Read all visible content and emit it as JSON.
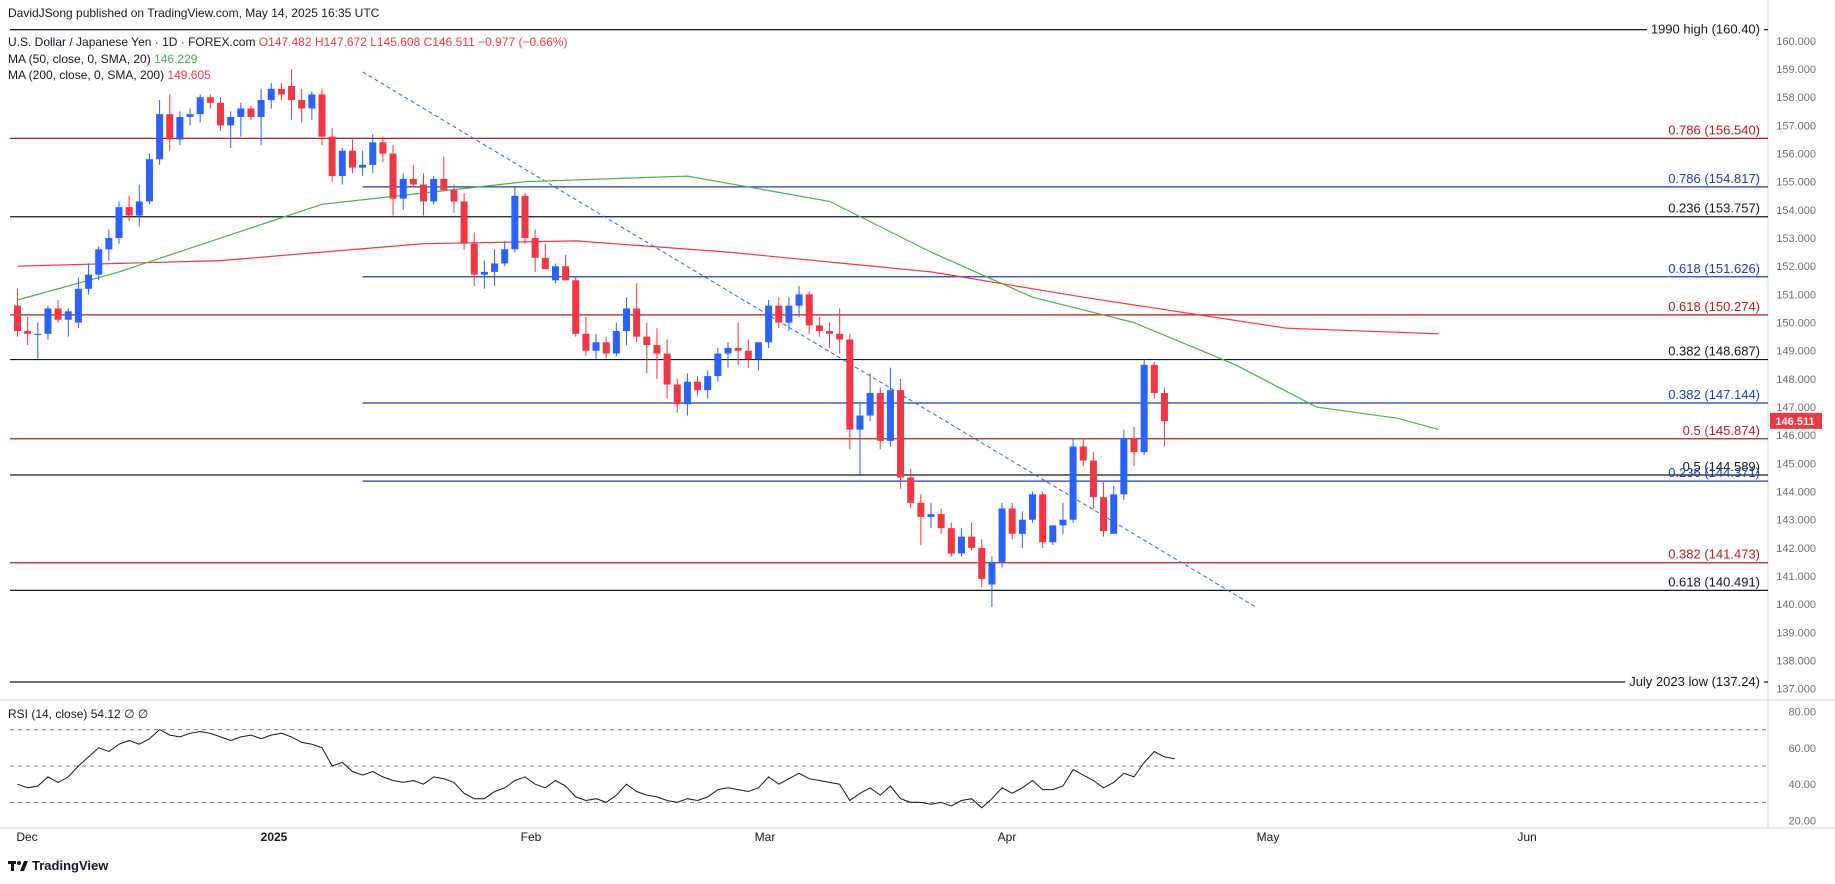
{
  "header": {
    "published": "DavidJSong published on TradingView.com, May 14, 2025 16:35 UTC",
    "symbol": "U.S. Dollar / Japanese Yen · 1D · FOREX.com",
    "ohlc": "O147.482 H147.672 L145.608 C146.511 −0.977 (−0.66%)",
    "ma50_label": "MA (50, close, 0, SMA, 20)",
    "ma50_value": "146.229",
    "ma200_label": "MA (200, close, 0, SMA, 200)",
    "ma200_value": "149.605",
    "rsi_label": "RSI (14, close)",
    "rsi_value": "54.12 ∅ ∅"
  },
  "footer": {
    "brand": "TradingView"
  },
  "colors": {
    "up": "#2962ff",
    "down": "#f23645",
    "ma50": "#4caf50",
    "ma200": "#f23645",
    "price_tag": "#f23645"
  },
  "chart_data": {
    "type": "candlestick",
    "title": "U.S. Dollar / Japanese Yen · 1D · FOREX.com",
    "x_ticks": [
      "Dec",
      "2025",
      "Feb",
      "Mar",
      "Apr",
      "May",
      "Jun"
    ],
    "y_ticks": [
      "137.000",
      "138.000",
      "139.000",
      "140.000",
      "141.000",
      "142.000",
      "143.000",
      "144.000",
      "145.000",
      "146.000",
      "147.000",
      "148.000",
      "149.000",
      "150.000",
      "151.000",
      "152.000",
      "153.000",
      "154.000",
      "155.000",
      "156.000",
      "157.000",
      "158.000",
      "159.000",
      "160.000"
    ],
    "ylim": [
      136.6,
      160.6
    ],
    "last_price": "146.511",
    "candles": [
      [
        150.6,
        151.2,
        149.5,
        149.7
      ],
      [
        149.7,
        150.2,
        149.2,
        149.6
      ],
      [
        149.6,
        150.0,
        148.7,
        149.6
      ],
      [
        149.6,
        150.6,
        149.4,
        150.5
      ],
      [
        150.5,
        150.8,
        150.0,
        150.1
      ],
      [
        150.1,
        150.5,
        149.5,
        150.4
      ],
      [
        150.0,
        151.6,
        149.8,
        151.2
      ],
      [
        151.2,
        152.1,
        151.0,
        151.7
      ],
      [
        151.7,
        152.7,
        151.5,
        152.6
      ],
      [
        152.6,
        153.3,
        152.2,
        153.0
      ],
      [
        153.0,
        154.3,
        152.8,
        154.1
      ],
      [
        154.1,
        154.5,
        153.6,
        153.8
      ],
      [
        153.8,
        154.9,
        153.4,
        154.3
      ],
      [
        154.3,
        156.0,
        154.2,
        155.8
      ],
      [
        155.8,
        157.9,
        155.6,
        157.4
      ],
      [
        157.4,
        158.1,
        156.1,
        156.5
      ],
      [
        156.5,
        157.5,
        156.3,
        157.3
      ],
      [
        157.3,
        157.6,
        157.0,
        157.4
      ],
      [
        157.4,
        158.1,
        157.1,
        158.0
      ],
      [
        158.0,
        158.1,
        157.6,
        157.8
      ],
      [
        157.8,
        158.0,
        156.8,
        157.0
      ],
      [
        157.0,
        157.5,
        156.2,
        157.3
      ],
      [
        157.3,
        157.8,
        156.6,
        157.6
      ],
      [
        157.6,
        157.7,
        157.2,
        157.3
      ],
      [
        157.3,
        158.3,
        156.3,
        157.9
      ],
      [
        157.9,
        158.5,
        157.6,
        158.3
      ],
      [
        158.3,
        158.5,
        157.9,
        158.1
      ],
      [
        158.4,
        159.0,
        157.2,
        157.9
      ],
      [
        157.9,
        158.3,
        157.1,
        157.6
      ],
      [
        157.6,
        158.2,
        157.2,
        158.1
      ],
      [
        158.1,
        158.3,
        156.3,
        156.6
      ],
      [
        156.6,
        156.9,
        155.0,
        155.2
      ],
      [
        155.2,
        156.2,
        154.9,
        156.1
      ],
      [
        156.1,
        156.5,
        155.3,
        155.5
      ],
      [
        155.5,
        156.1,
        155.2,
        155.6
      ],
      [
        155.6,
        156.7,
        155.3,
        156.4
      ],
      [
        156.4,
        156.6,
        155.7,
        156.0
      ],
      [
        156.0,
        156.3,
        153.8,
        154.4
      ],
      [
        154.4,
        155.3,
        154.0,
        155.1
      ],
      [
        155.1,
        155.6,
        154.8,
        154.9
      ],
      [
        154.9,
        155.3,
        153.8,
        154.3
      ],
      [
        154.3,
        155.2,
        154.2,
        155.1
      ],
      [
        155.1,
        155.9,
        154.7,
        154.7
      ],
      [
        154.7,
        154.9,
        153.9,
        154.3
      ],
      [
        154.3,
        154.6,
        152.6,
        152.8
      ],
      [
        152.8,
        153.2,
        151.3,
        151.7
      ],
      [
        151.7,
        152.2,
        151.2,
        151.8
      ],
      [
        151.8,
        152.6,
        151.3,
        152.1
      ],
      [
        152.1,
        152.9,
        152.0,
        152.6
      ],
      [
        152.6,
        154.8,
        152.5,
        154.5
      ],
      [
        154.5,
        154.6,
        152.8,
        153.0
      ],
      [
        153.0,
        153.3,
        151.8,
        152.3
      ],
      [
        152.3,
        152.8,
        151.9,
        151.9
      ],
      [
        151.5,
        152.1,
        151.4,
        152.0
      ],
      [
        152.0,
        152.4,
        151.5,
        151.5
      ],
      [
        151.5,
        151.6,
        149.5,
        149.6
      ],
      [
        149.6,
        150.2,
        148.8,
        149.0
      ],
      [
        149.0,
        149.6,
        148.7,
        149.3
      ],
      [
        149.3,
        149.5,
        148.7,
        148.9
      ],
      [
        148.9,
        150.0,
        148.8,
        149.7
      ],
      [
        149.7,
        150.9,
        149.2,
        150.5
      ],
      [
        150.5,
        151.4,
        149.3,
        149.5
      ],
      [
        149.5,
        150.0,
        148.2,
        149.2
      ],
      [
        149.2,
        149.8,
        148.0,
        148.9
      ],
      [
        148.9,
        149.4,
        147.3,
        147.8
      ],
      [
        147.8,
        148.0,
        146.8,
        147.1
      ],
      [
        147.1,
        148.2,
        146.7,
        147.9
      ],
      [
        147.9,
        148.1,
        147.4,
        147.6
      ],
      [
        147.6,
        148.3,
        147.3,
        148.1
      ],
      [
        148.1,
        149.1,
        147.9,
        148.9
      ],
      [
        148.9,
        149.3,
        148.4,
        149.1
      ],
      [
        149.1,
        150.0,
        148.5,
        149.0
      ],
      [
        149.0,
        149.4,
        148.4,
        148.7
      ],
      [
        148.7,
        149.3,
        148.3,
        149.3
      ],
      [
        149.3,
        150.8,
        149.1,
        150.6
      ],
      [
        150.6,
        150.9,
        149.8,
        150.0
      ],
      [
        150.0,
        150.9,
        149.7,
        150.6
      ],
      [
        150.6,
        151.3,
        150.2,
        151.0
      ],
      [
        151.0,
        151.1,
        149.6,
        149.9
      ],
      [
        149.9,
        150.2,
        149.5,
        149.7
      ],
      [
        149.7,
        150.0,
        149.1,
        149.6
      ],
      [
        149.6,
        150.5,
        148.9,
        149.4
      ],
      [
        149.4,
        149.6,
        145.5,
        146.2
      ],
      [
        146.2,
        147.2,
        144.6,
        146.7
      ],
      [
        146.7,
        148.2,
        146.5,
        147.5
      ],
      [
        147.5,
        147.7,
        145.5,
        145.8
      ],
      [
        145.8,
        148.4,
        145.6,
        147.6
      ],
      [
        147.6,
        148.0,
        144.1,
        144.5
      ],
      [
        144.5,
        144.8,
        143.4,
        143.6
      ],
      [
        143.6,
        143.9,
        142.1,
        143.1
      ],
      [
        143.1,
        143.6,
        142.7,
        143.2
      ],
      [
        143.2,
        143.4,
        142.5,
        142.7
      ],
      [
        142.7,
        142.9,
        141.7,
        141.8
      ],
      [
        141.8,
        142.7,
        141.7,
        142.4
      ],
      [
        142.4,
        142.9,
        141.9,
        142.0
      ],
      [
        142.0,
        142.3,
        140.6,
        140.9
      ],
      [
        140.7,
        141.7,
        139.9,
        141.5
      ],
      [
        141.5,
        143.6,
        141.3,
        143.4
      ],
      [
        143.4,
        143.6,
        142.3,
        142.5
      ],
      [
        142.5,
        143.3,
        142.0,
        143.0
      ],
      [
        143.0,
        144.0,
        142.9,
        143.9
      ],
      [
        143.9,
        144.0,
        142.0,
        142.2
      ],
      [
        142.2,
        142.8,
        142.1,
        142.8
      ],
      [
        142.8,
        143.6,
        142.5,
        143.0
      ],
      [
        143.0,
        145.9,
        142.9,
        145.6
      ],
      [
        145.6,
        145.9,
        144.9,
        145.1
      ],
      [
        145.1,
        145.4,
        143.4,
        143.8
      ],
      [
        143.8,
        144.4,
        142.4,
        142.6
      ],
      [
        142.5,
        144.2,
        142.5,
        143.9
      ],
      [
        143.9,
        146.2,
        143.7,
        145.9
      ],
      [
        145.9,
        146.3,
        144.9,
        145.4
      ],
      [
        145.4,
        148.7,
        145.3,
        148.5
      ],
      [
        148.5,
        148.6,
        147.3,
        147.5
      ],
      [
        147.5,
        147.7,
        145.6,
        146.5
      ]
    ],
    "ma50": [
      [
        0,
        150.8
      ],
      [
        10,
        151.8
      ],
      [
        30,
        154.2
      ],
      [
        50,
        155.0
      ],
      [
        66,
        155.2
      ],
      [
        80,
        154.3
      ],
      [
        90,
        152.5
      ],
      [
        100,
        150.9
      ],
      [
        110,
        150.0
      ],
      [
        120,
        148.5
      ],
      [
        128,
        147.0
      ],
      [
        136,
        146.6
      ],
      [
        140,
        146.2
      ]
    ],
    "ma200": [
      [
        0,
        152.0
      ],
      [
        20,
        152.2
      ],
      [
        40,
        152.8
      ],
      [
        55,
        152.9
      ],
      [
        70,
        152.5
      ],
      [
        90,
        151.8
      ],
      [
        105,
        150.9
      ],
      [
        125,
        149.8
      ],
      [
        140,
        149.6
      ]
    ],
    "trendline": {
      "from": [
        34,
        158.9
      ],
      "to": [
        122,
        139.9
      ]
    },
    "levels": [
      {
        "value": 160.4,
        "label": "1990 high (160.40)",
        "color": "#131722",
        "start": 0
      },
      {
        "value": 156.54,
        "label": "0.786 (156.540)",
        "color": "#b71c1c",
        "start": 0
      },
      {
        "value": 154.817,
        "label": "0.786 (154.817)",
        "color": "#1e3cb4",
        "start": 34
      },
      {
        "value": 153.757,
        "label": "0.236 (153.757)",
        "color": "#131722",
        "start": 0
      },
      {
        "value": 151.626,
        "label": "0.618 (151.626)",
        "color": "#1e3cb4",
        "start": 34
      },
      {
        "value": 150.274,
        "label": "0.618 (150.274)",
        "color": "#b71c1c",
        "start": 0
      },
      {
        "value": 148.687,
        "label": "0.382 (148.687)",
        "color": "#131722",
        "start": 0
      },
      {
        "value": 147.144,
        "label": "0.382 (147.144)",
        "color": "#1e3cb4",
        "start": 34
      },
      {
        "value": 145.874,
        "label": "0.5 (145.874)",
        "color": "#b71c1c",
        "start": 0
      },
      {
        "value": 144.589,
        "label": "0.5 (144.589)",
        "color": "#131722",
        "start": 0
      },
      {
        "value": 144.371,
        "label": "0.236 (144.371)",
        "color": "#1e3cb4",
        "start": 34
      },
      {
        "value": 141.473,
        "label": "0.382 (141.473)",
        "color": "#b71c1c",
        "start": 0
      },
      {
        "value": 140.491,
        "label": "0.618 (140.491)",
        "color": "#131722",
        "start": 0
      },
      {
        "value": 137.24,
        "label": "July 2023 low (137.24)",
        "color": "#131722",
        "start": 0
      }
    ],
    "rsi": {
      "y_ticks": [
        "20.00",
        "40.00",
        "60.00",
        "80.00"
      ],
      "ylim": [
        17,
        83
      ],
      "bands": [
        70,
        50,
        30
      ],
      "values": [
        40,
        38,
        39,
        44,
        41,
        44,
        50,
        55,
        60,
        58,
        62,
        64,
        62,
        65,
        70,
        67,
        66,
        68,
        69,
        68,
        66,
        64,
        66,
        67,
        65,
        67,
        68,
        66,
        63,
        62,
        60,
        50,
        52,
        47,
        45,
        47,
        44,
        42,
        41,
        42,
        40,
        44,
        43,
        41,
        35,
        32,
        32,
        36,
        38,
        42,
        44,
        40,
        38,
        42,
        39,
        33,
        31,
        32,
        30,
        34,
        40,
        36,
        34,
        33,
        31,
        30,
        32,
        31,
        33,
        37,
        38,
        37,
        36,
        38,
        44,
        40,
        43,
        46,
        43,
        42,
        41,
        40,
        31,
        35,
        38,
        34,
        39,
        32,
        30,
        30,
        29,
        30,
        28,
        31,
        32,
        27,
        32,
        38,
        35,
        38,
        42,
        37,
        37,
        39,
        48,
        45,
        42,
        38,
        41,
        46,
        44,
        52,
        58,
        55,
        54
      ]
    }
  }
}
